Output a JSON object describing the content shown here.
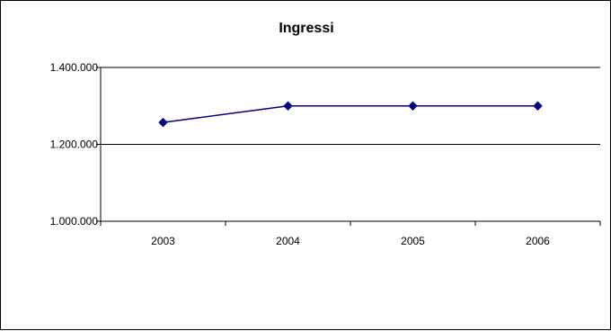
{
  "chart_data": {
    "type": "line",
    "title": "Ingressi",
    "xlabel": "",
    "ylabel": "",
    "categories": [
      "2003",
      "2004",
      "2005",
      "2006"
    ],
    "series": [
      {
        "values": [
          1257000,
          1300000,
          1300000,
          1300000
        ]
      }
    ],
    "ylim": [
      1000000,
      1400000
    ],
    "yticks": [
      1000000,
      1200000,
      1400000
    ],
    "ytick_labels": [
      "1.000.000",
      "1.200.000",
      "1.400.000"
    ],
    "grid": "horizontal major gridlines",
    "legend": "none",
    "colors": {
      "series": "#000080",
      "axis": "#000000",
      "gridline": "#000000"
    }
  }
}
